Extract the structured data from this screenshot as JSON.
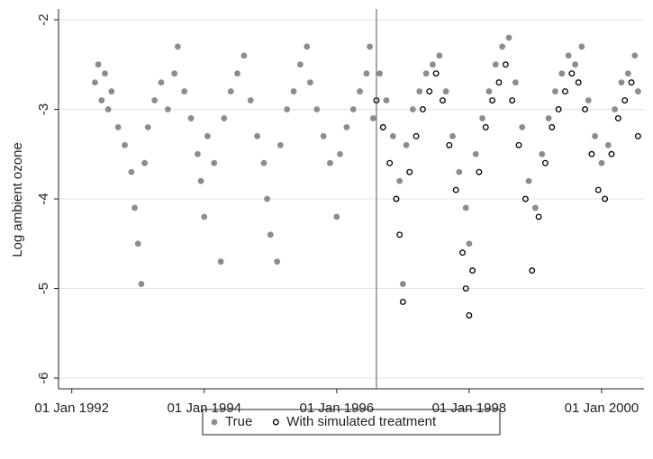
{
  "chart_data": {
    "type": "scatter",
    "y_label": "Log ambient ozone",
    "xlim": [
      1991.8,
      2000.64
    ],
    "xticks": [
      {
        "value": 1992,
        "label": "01 Jan 1992"
      },
      {
        "value": 1994,
        "label": "01 Jan 1994"
      },
      {
        "value": 1996,
        "label": "01 Jan 1996"
      },
      {
        "value": 1998,
        "label": "01 Jan 1998"
      },
      {
        "value": 2000,
        "label": "01 Jan 2000"
      }
    ],
    "ylim": [
      -6.12,
      -1.88
    ],
    "yticks": [
      -2,
      -3,
      -4,
      -5,
      -6
    ],
    "grid": true,
    "vline": 1996.6,
    "legend": "bottom",
    "series": [
      {
        "name": "True",
        "color": "#8c8c8c",
        "marker": "filled",
        "x": [
          1992.35,
          1992.4,
          1992.45,
          1992.5,
          1992.55,
          1992.6,
          1992.7,
          1992.8,
          1992.9,
          1992.95,
          1993.0,
          1993.05,
          1993.1,
          1993.15,
          1993.25,
          1993.35,
          1993.45,
          1993.55,
          1993.6,
          1993.7,
          1993.8,
          1993.9,
          1993.95,
          1994.0,
          1994.05,
          1994.15,
          1994.25,
          1994.3,
          1994.4,
          1994.5,
          1994.6,
          1994.7,
          1994.8,
          1994.9,
          1994.95,
          1995.0,
          1995.1,
          1995.15,
          1995.25,
          1995.35,
          1995.45,
          1995.55,
          1995.6,
          1995.7,
          1995.8,
          1995.9,
          1996.0,
          1996.05,
          1996.15,
          1996.25,
          1996.35,
          1996.45,
          1996.5,
          1996.55,
          1996.65,
          1996.75,
          1996.85,
          1996.95,
          1997.0,
          1997.05,
          1997.15,
          1997.25,
          1997.35,
          1997.45,
          1997.55,
          1997.65,
          1997.75,
          1997.85,
          1997.95,
          1998.0,
          1998.1,
          1998.2,
          1998.3,
          1998.4,
          1998.5,
          1998.6,
          1998.7,
          1998.8,
          1998.9,
          1999.0,
          1999.1,
          1999.2,
          1999.3,
          1999.4,
          1999.5,
          1999.6,
          1999.7,
          1999.8,
          1999.9,
          2000.0,
          2000.1,
          2000.2,
          2000.3,
          2000.4,
          2000.5,
          2000.55
        ],
        "values": [
          -2.7,
          -2.5,
          -2.9,
          -2.6,
          -3.0,
          -2.8,
          -3.2,
          -3.4,
          -3.7,
          -4.1,
          -4.5,
          -4.95,
          -3.6,
          -3.2,
          -2.9,
          -2.7,
          -3.0,
          -2.6,
          -2.3,
          -2.8,
          -3.1,
          -3.5,
          -3.8,
          -4.2,
          -3.3,
          -3.6,
          -4.7,
          -3.1,
          -2.8,
          -2.6,
          -2.4,
          -2.9,
          -3.3,
          -3.6,
          -4.0,
          -4.4,
          -4.7,
          -3.4,
          -3.0,
          -2.8,
          -2.5,
          -2.3,
          -2.7,
          -3.0,
          -3.3,
          -3.6,
          -4.2,
          -3.5,
          -3.2,
          -3.0,
          -2.8,
          -2.6,
          -2.3,
          -3.1,
          -2.6,
          -2.9,
          -3.3,
          -3.8,
          -4.95,
          -3.4,
          -3.0,
          -2.8,
          -2.6,
          -2.5,
          -2.4,
          -2.8,
          -3.3,
          -3.7,
          -4.1,
          -4.5,
          -3.5,
          -3.1,
          -2.8,
          -2.5,
          -2.3,
          -2.2,
          -2.7,
          -3.2,
          -3.8,
          -4.1,
          -3.5,
          -3.1,
          -2.8,
          -2.6,
          -2.4,
          -2.5,
          -2.3,
          -2.9,
          -3.3,
          -3.6,
          -3.4,
          -3.0,
          -2.7,
          -2.6,
          -2.4,
          -2.8
        ]
      },
      {
        "name": "With simulated treatment",
        "color": "#000000",
        "marker": "hollow",
        "x": [
          1996.6,
          1996.7,
          1996.8,
          1996.9,
          1996.95,
          1997.0,
          1997.1,
          1997.2,
          1997.3,
          1997.4,
          1997.5,
          1997.6,
          1997.7,
          1997.8,
          1997.9,
          1997.95,
          1998.0,
          1998.05,
          1998.15,
          1998.25,
          1998.35,
          1998.45,
          1998.55,
          1998.65,
          1998.75,
          1998.85,
          1998.95,
          1999.05,
          1999.15,
          1999.25,
          1999.35,
          1999.45,
          1999.55,
          1999.65,
          1999.75,
          1999.85,
          1999.95,
          2000.05,
          2000.15,
          2000.25,
          2000.35,
          2000.45,
          2000.55
        ],
        "values": [
          -2.9,
          -3.2,
          -3.6,
          -4.0,
          -4.4,
          -5.15,
          -3.7,
          -3.3,
          -3.0,
          -2.8,
          -2.6,
          -2.9,
          -3.4,
          -3.9,
          -4.6,
          -5.0,
          -5.3,
          -4.8,
          -3.7,
          -3.2,
          -2.9,
          -2.7,
          -2.5,
          -2.9,
          -3.4,
          -4.0,
          -4.8,
          -4.2,
          -3.6,
          -3.2,
          -3.0,
          -2.8,
          -2.6,
          -2.7,
          -3.0,
          -3.5,
          -3.9,
          -4.0,
          -3.5,
          -3.1,
          -2.9,
          -2.7,
          -3.3
        ]
      }
    ]
  }
}
